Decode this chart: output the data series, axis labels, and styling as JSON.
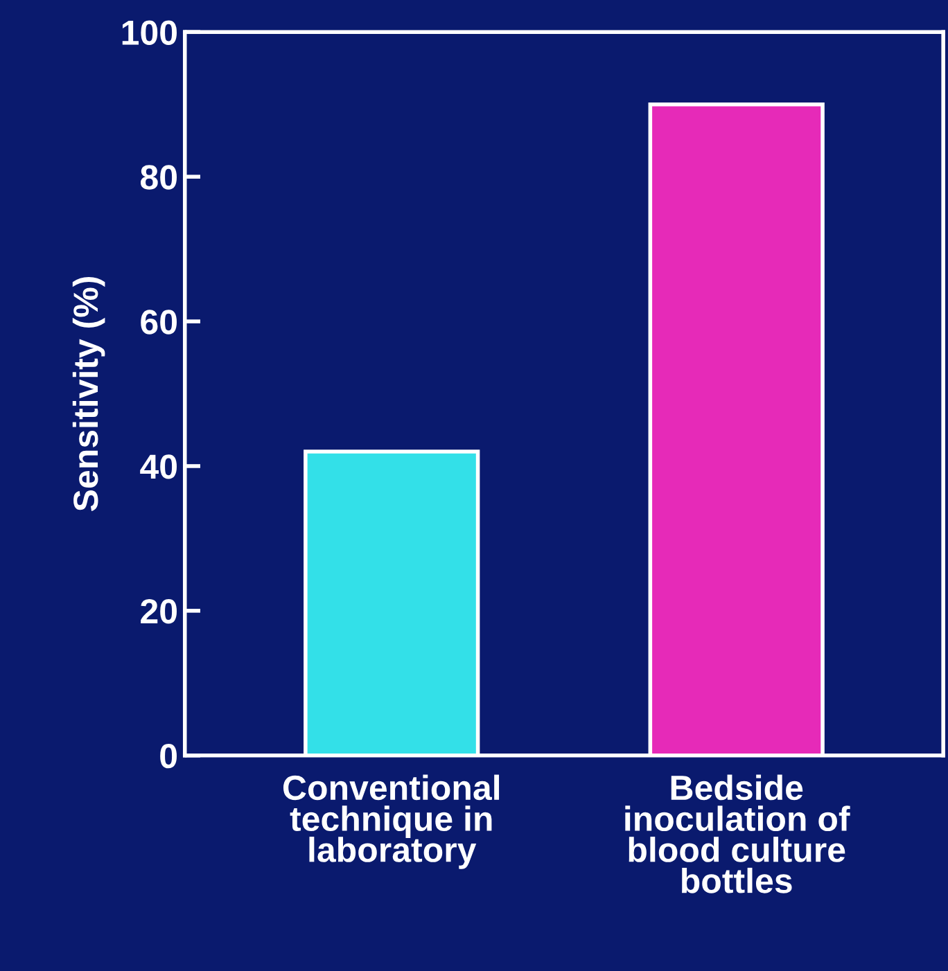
{
  "chart_data": {
    "type": "bar",
    "ylabel": "Sensitivity (%)",
    "categories": [
      "Conventional\ntechnique in\nlaboratory",
      "Bedside\ninoculation of\nblood culture\nbottles"
    ],
    "values": [
      42,
      90
    ],
    "colors": [
      "#33e0e8",
      "#e62ab8"
    ],
    "ylim": [
      0,
      100
    ],
    "yticks": [
      0,
      20,
      40,
      60,
      80,
      100
    ],
    "grid": false,
    "legend": false
  }
}
